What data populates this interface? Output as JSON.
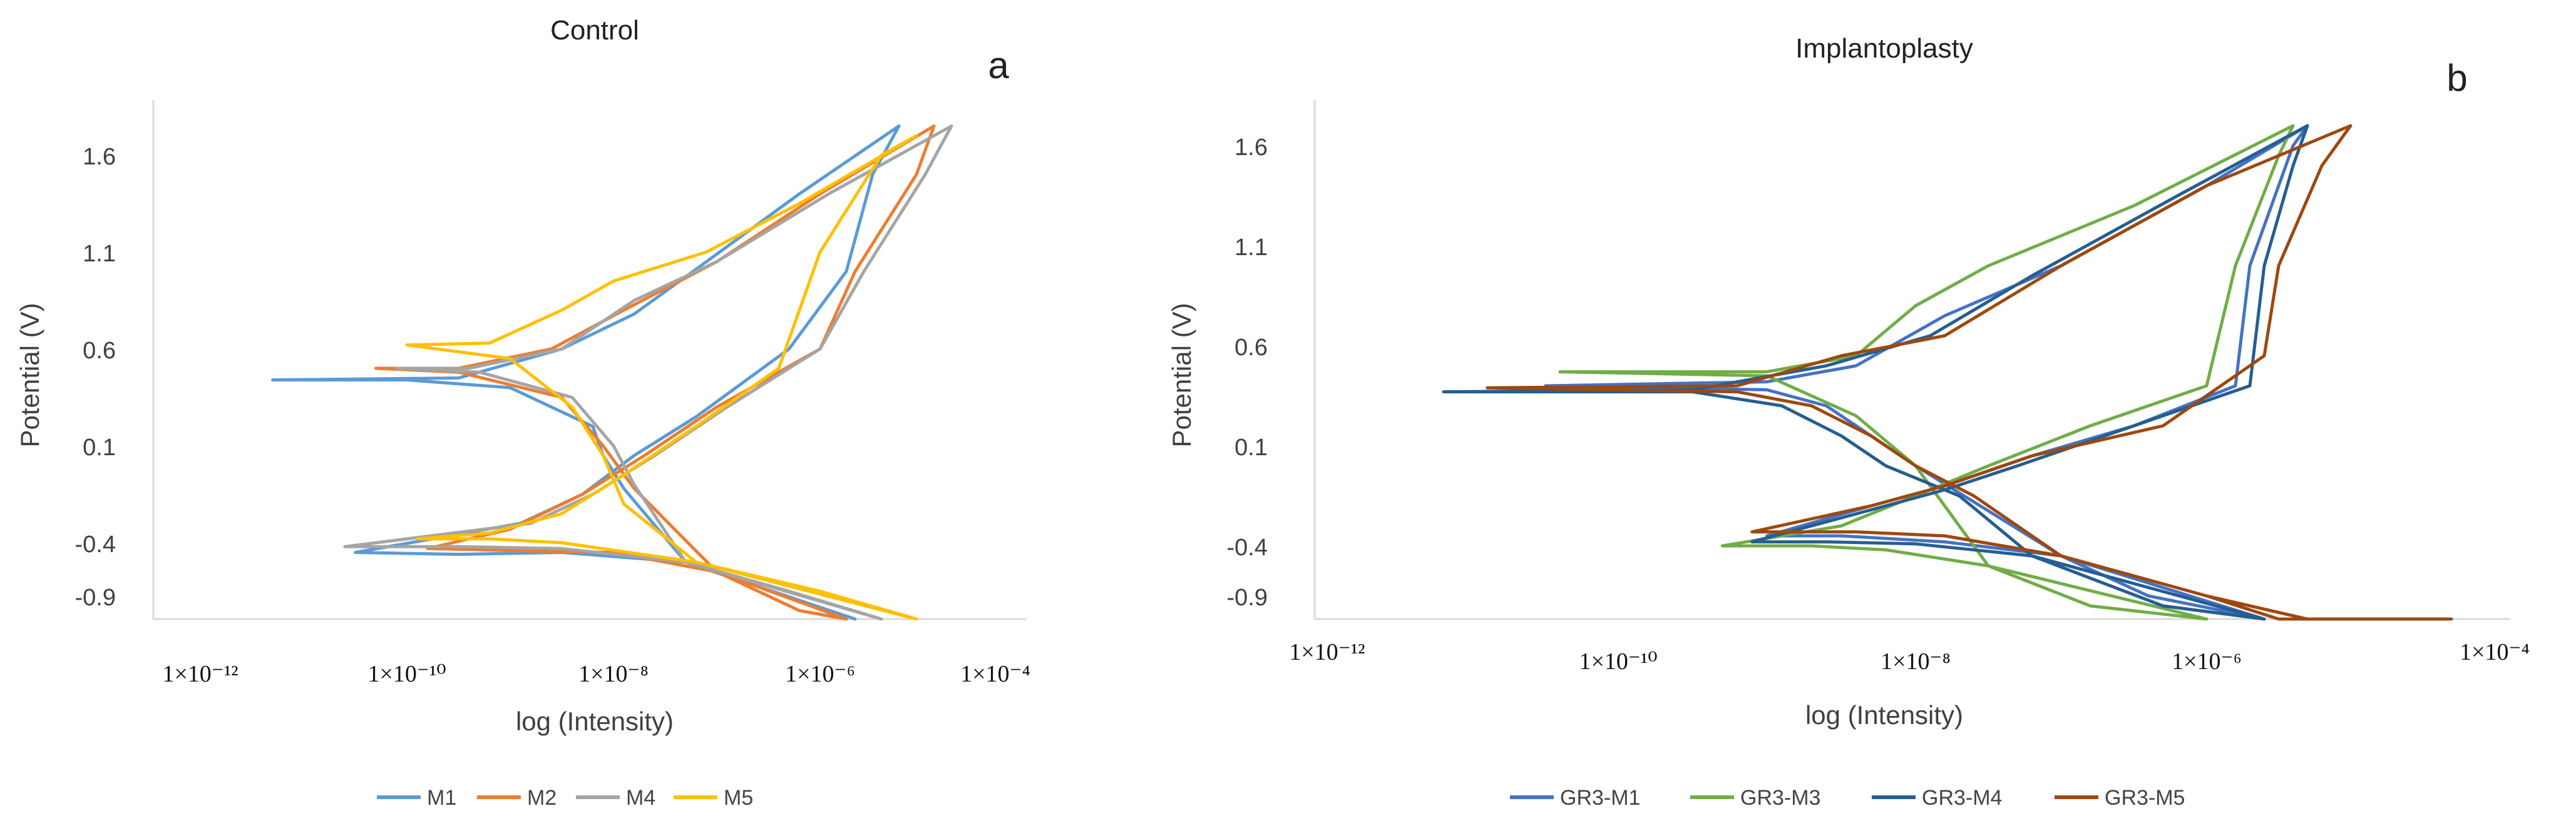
{
  "charts": [
    {
      "id": "a",
      "panel_label": "a",
      "title": "Control",
      "xlabel": "log (Intensity)",
      "ylabel": "Potential (V)",
      "yticks": [
        "1.6",
        "1.1",
        "0.6",
        "0.1",
        "-0.4",
        "-0.9"
      ],
      "xticks": [
        "1×10⁻¹²",
        "1×10⁻¹⁰",
        "1×10⁻⁸",
        "1×10⁻⁶",
        "1×10⁻⁴"
      ],
      "legend": [
        {
          "name": "M1",
          "color": "#5b9bd5"
        },
        {
          "name": "M2",
          "color": "#ed7d31"
        },
        {
          "name": "M4",
          "color": "#a5a5a5"
        },
        {
          "name": "M5",
          "color": "#ffc000"
        }
      ]
    },
    {
      "id": "b",
      "panel_label": "b",
      "title": "Implantoplasty",
      "xlabel": "log (Intensity)",
      "ylabel": "Potential (V)",
      "yticks": [
        "1.6",
        "1.1",
        "0.6",
        "0.1",
        "-0.4",
        "-0.9"
      ],
      "xticks": [
        "1×10⁻¹²",
        "1×10⁻¹⁰",
        "1×10⁻⁸",
        "1×10⁻⁶",
        "1×10⁻⁴"
      ],
      "legend": [
        {
          "name": "GR3-M1",
          "color": "#4472c4"
        },
        {
          "name": "GR3-M3",
          "color": "#70ad47"
        },
        {
          "name": "GR3-M4",
          "color": "#255e91"
        },
        {
          "name": "GR3-M5",
          "color": "#9e480e"
        }
      ]
    }
  ],
  "chart_data": [
    {
      "type": "line",
      "title": "Control",
      "xlabel": "log (Intensity)",
      "ylabel": "Potential (V)",
      "xscale": "log",
      "xlim": [
        -12,
        -4
      ],
      "ylim": [
        -0.9,
        1.75
      ],
      "series": [
        {
          "name": "M1",
          "color": "#5b9bd5",
          "points": [
            [
              -10.5,
              -0.45
            ],
            [
              -9.5,
              -0.46
            ],
            [
              -8.5,
              -0.45
            ],
            [
              -7.3,
              -0.5
            ],
            [
              -6.2,
              -0.7
            ],
            [
              -5.6,
              -0.9
            ],
            [
              -7.3,
              -0.5
            ],
            [
              -7.9,
              -0.12
            ],
            [
              -8.1,
              0.05
            ],
            [
              -8.2,
              0.2
            ],
            [
              -9.0,
              0.4
            ],
            [
              -10.0,
              0.44
            ],
            [
              -11.3,
              0.44
            ],
            [
              -9.5,
              0.45
            ],
            [
              -8.5,
              0.6
            ],
            [
              -7.8,
              0.78
            ],
            [
              -7.1,
              1.05
            ],
            [
              -6.2,
              1.4
            ],
            [
              -5.1,
              1.75
            ],
            [
              -5.4,
              1.5
            ],
            [
              -5.7,
              1.0
            ],
            [
              -6.3,
              0.6
            ],
            [
              -7.2,
              0.25
            ],
            [
              -7.8,
              0.05
            ],
            [
              -8.3,
              -0.15
            ],
            [
              -8.9,
              -0.3
            ],
            [
              -10.5,
              -0.45
            ]
          ]
        },
        {
          "name": "M2",
          "color": "#ed7d31",
          "points": [
            [
              -9.8,
              -0.43
            ],
            [
              -9.0,
              -0.44
            ],
            [
              -8.0,
              -0.45
            ],
            [
              -7.0,
              -0.55
            ],
            [
              -6.2,
              -0.75
            ],
            [
              -5.7,
              -0.95
            ],
            [
              -7.0,
              -0.55
            ],
            [
              -7.8,
              -0.12
            ],
            [
              -8.1,
              0.1
            ],
            [
              -8.5,
              0.35
            ],
            [
              -9.5,
              0.48
            ],
            [
              -10.3,
              0.5
            ],
            [
              -9.5,
              0.5
            ],
            [
              -8.6,
              0.6
            ],
            [
              -7.9,
              0.8
            ],
            [
              -7.0,
              1.05
            ],
            [
              -6.0,
              1.4
            ],
            [
              -4.7,
              1.75
            ],
            [
              -4.9,
              1.5
            ],
            [
              -5.6,
              1.0
            ],
            [
              -6.0,
              0.6
            ],
            [
              -7.0,
              0.3
            ],
            [
              -7.7,
              0.05
            ],
            [
              -8.3,
              -0.15
            ],
            [
              -9.0,
              -0.33
            ],
            [
              -9.8,
              -0.43
            ]
          ]
        },
        {
          "name": "M4",
          "color": "#a5a5a5",
          "points": [
            [
              -10.6,
              -0.42
            ],
            [
              -9.5,
              -0.42
            ],
            [
              -8.5,
              -0.43
            ],
            [
              -7.3,
              -0.5
            ],
            [
              -6.3,
              -0.65
            ],
            [
              -5.3,
              -0.85
            ],
            [
              -7.3,
              -0.5
            ],
            [
              -7.8,
              -0.1
            ],
            [
              -8.0,
              0.1
            ],
            [
              -8.4,
              0.35
            ],
            [
              -9.3,
              0.48
            ],
            [
              -10.1,
              0.5
            ],
            [
              -9.4,
              0.5
            ],
            [
              -8.5,
              0.6
            ],
            [
              -7.8,
              0.85
            ],
            [
              -7.0,
              1.05
            ],
            [
              -5.9,
              1.4
            ],
            [
              -4.5,
              1.75
            ],
            [
              -4.8,
              1.5
            ],
            [
              -5.5,
              1.0
            ],
            [
              -6.0,
              0.6
            ],
            [
              -6.9,
              0.3
            ],
            [
              -7.6,
              0.05
            ],
            [
              -8.2,
              -0.15
            ],
            [
              -8.8,
              -0.3
            ],
            [
              -10.6,
              -0.42
            ]
          ]
        },
        {
          "name": "M5",
          "color": "#ffc000",
          "points": [
            [
              -9.9,
              -0.38
            ],
            [
              -9.2,
              -0.38
            ],
            [
              -8.5,
              -0.4
            ],
            [
              -7.2,
              -0.5
            ],
            [
              -6.0,
              -0.65
            ],
            [
              -4.9,
              -0.8
            ],
            [
              -7.2,
              -0.5
            ],
            [
              -7.9,
              -0.2
            ],
            [
              -8.1,
              0.05
            ],
            [
              -8.4,
              0.3
            ],
            [
              -9.0,
              0.55
            ],
            [
              -10.0,
              0.62
            ],
            [
              -9.2,
              0.63
            ],
            [
              -8.5,
              0.8
            ],
            [
              -8.0,
              0.95
            ],
            [
              -7.1,
              1.1
            ],
            [
              -6.2,
              1.35
            ],
            [
              -4.9,
              1.7
            ],
            [
              -5.3,
              1.6
            ],
            [
              -6.0,
              1.1
            ],
            [
              -6.4,
              0.5
            ],
            [
              -7.2,
              0.2
            ],
            [
              -7.9,
              -0.05
            ],
            [
              -8.5,
              -0.25
            ],
            [
              -9.2,
              -0.35
            ],
            [
              -9.9,
              -0.38
            ]
          ]
        }
      ]
    },
    {
      "type": "line",
      "title": "Implantoplasty",
      "xlabel": "log (Intensity)",
      "ylabel": "Potential (V)",
      "xscale": "log",
      "xlim": [
        -12,
        -4
      ],
      "ylim": [
        -0.9,
        1.75
      ],
      "series": [
        {
          "name": "GR3-M1",
          "color": "#4472c4",
          "points": [
            [
              -9.0,
              -0.35
            ],
            [
              -8.5,
              -0.35
            ],
            [
              -7.8,
              -0.38
            ],
            [
              -7.0,
              -0.45
            ],
            [
              -6.4,
              -0.65
            ],
            [
              -5.6,
              -0.92
            ],
            [
              -7.0,
              -0.45
            ],
            [
              -7.6,
              -0.18
            ],
            [
              -8.0,
              0.0
            ],
            [
              -8.3,
              0.15
            ],
            [
              -8.6,
              0.3
            ],
            [
              -9.0,
              0.38
            ],
            [
              -10.5,
              0.4
            ],
            [
              -9.0,
              0.42
            ],
            [
              -8.4,
              0.5
            ],
            [
              -7.8,
              0.75
            ],
            [
              -7.0,
              1.0
            ],
            [
              -6.0,
              1.4
            ],
            [
              -5.3,
              1.7
            ],
            [
              -5.4,
              1.6
            ],
            [
              -5.7,
              1.0
            ],
            [
              -5.8,
              0.4
            ],
            [
              -6.5,
              0.2
            ],
            [
              -7.2,
              0.05
            ],
            [
              -7.8,
              -0.1
            ],
            [
              -8.3,
              -0.2
            ],
            [
              -9.0,
              -0.35
            ]
          ]
        },
        {
          "name": "GR3-M3",
          "color": "#70ad47",
          "points": [
            [
              -9.3,
              -0.4
            ],
            [
              -8.7,
              -0.4
            ],
            [
              -8.2,
              -0.42
            ],
            [
              -7.5,
              -0.5
            ],
            [
              -6.8,
              -0.7
            ],
            [
              -6.0,
              -0.95
            ],
            [
              -7.5,
              -0.5
            ],
            [
              -7.8,
              -0.2
            ],
            [
              -8.0,
              0.0
            ],
            [
              -8.4,
              0.25
            ],
            [
              -9.0,
              0.45
            ],
            [
              -10.4,
              0.47
            ],
            [
              -9.0,
              0.47
            ],
            [
              -8.4,
              0.55
            ],
            [
              -8.0,
              0.8
            ],
            [
              -7.5,
              1.0
            ],
            [
              -6.5,
              1.3
            ],
            [
              -5.4,
              1.7
            ],
            [
              -5.5,
              1.55
            ],
            [
              -5.8,
              1.0
            ],
            [
              -6.0,
              0.4
            ],
            [
              -6.8,
              0.2
            ],
            [
              -7.5,
              0.0
            ],
            [
              -8.0,
              -0.15
            ],
            [
              -8.5,
              -0.3
            ],
            [
              -9.3,
              -0.4
            ]
          ]
        },
        {
          "name": "GR3-M4",
          "color": "#255e91",
          "points": [
            [
              -9.1,
              -0.38
            ],
            [
              -8.6,
              -0.38
            ],
            [
              -8.0,
              -0.39
            ],
            [
              -7.2,
              -0.45
            ],
            [
              -6.3,
              -0.7
            ],
            [
              -5.6,
              -0.95
            ],
            [
              -7.2,
              -0.45
            ],
            [
              -7.7,
              -0.15
            ],
            [
              -8.2,
              0.0
            ],
            [
              -8.5,
              0.15
            ],
            [
              -8.9,
              0.3
            ],
            [
              -9.5,
              0.37
            ],
            [
              -11.2,
              0.37
            ],
            [
              -9.5,
              0.38
            ],
            [
              -8.6,
              0.5
            ],
            [
              -7.9,
              0.65
            ],
            [
              -7.2,
              0.95
            ],
            [
              -6.2,
              1.35
            ],
            [
              -5.3,
              1.7
            ],
            [
              -5.4,
              1.5
            ],
            [
              -5.6,
              1.0
            ],
            [
              -5.7,
              0.4
            ],
            [
              -6.5,
              0.2
            ],
            [
              -7.3,
              0.0
            ],
            [
              -7.8,
              -0.12
            ],
            [
              -8.3,
              -0.22
            ],
            [
              -9.1,
              -0.38
            ]
          ]
        },
        {
          "name": "GR3-M5",
          "color": "#9e480e",
          "points": [
            [
              -9.1,
              -0.33
            ],
            [
              -8.4,
              -0.33
            ],
            [
              -7.8,
              -0.35
            ],
            [
              -7.0,
              -0.45
            ],
            [
              -6.0,
              -0.65
            ],
            [
              -5.3,
              -0.92
            ],
            [
              -6.0,
              -0.65
            ],
            [
              -5.5,
              -0.85
            ],
            [
              -4.3,
              -0.85
            ],
            [
              -5.5,
              -0.85
            ],
            [
              -6.0,
              -0.65
            ],
            [
              -7.0,
              -0.45
            ],
            [
              -7.6,
              -0.15
            ],
            [
              -8.0,
              0.0
            ],
            [
              -8.3,
              0.15
            ],
            [
              -8.7,
              0.3
            ],
            [
              -9.2,
              0.37
            ],
            [
              -10.9,
              0.39
            ],
            [
              -9.2,
              0.4
            ],
            [
              -8.5,
              0.55
            ],
            [
              -7.8,
              0.65
            ],
            [
              -7.0,
              1.0
            ],
            [
              -6.0,
              1.4
            ],
            [
              -5.0,
              1.7
            ],
            [
              -5.2,
              1.5
            ],
            [
              -5.5,
              1.0
            ],
            [
              -5.6,
              0.55
            ],
            [
              -6.3,
              0.2
            ],
            [
              -7.2,
              0.05
            ],
            [
              -7.8,
              -0.1
            ],
            [
              -8.3,
              -0.2
            ],
            [
              -9.1,
              -0.33
            ]
          ]
        }
      ]
    }
  ]
}
